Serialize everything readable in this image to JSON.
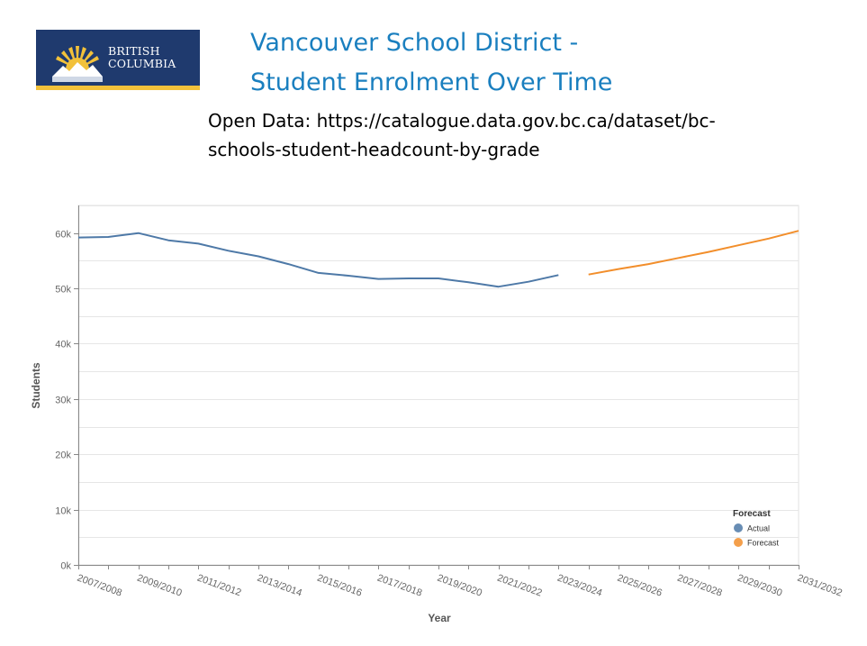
{
  "header": {
    "logo": {
      "line1": "BRITISH",
      "line2": "COLUMBIA",
      "name": "bc-government-logo"
    },
    "title_line1": "Vancouver School District -",
    "title_line2": "Student Enrolment Over Time",
    "source_line1": "Open Data: https://catalogue.data.gov.bc.ca/dataset/bc-",
    "source_line2": "schools-student-headcount-by-grade"
  },
  "chart_data": {
    "type": "line",
    "title": "",
    "xlabel": "Year",
    "ylabel": "Students",
    "x_ticks": [
      "2007/2008",
      "2009/2010",
      "2011/2012",
      "2013/2014",
      "2015/2016",
      "2017/2018",
      "2019/2020",
      "2021/2022",
      "2023/2024",
      "2025/2026",
      "2027/2028",
      "2029/2030",
      "2031/2032"
    ],
    "y_ticks": [
      "0k",
      "10k",
      "20k",
      "30k",
      "40k",
      "50k",
      "60k"
    ],
    "ylim": [
      0,
      65000
    ],
    "x_years": [
      "2007/2008",
      "2008/2009",
      "2009/2010",
      "2010/2011",
      "2011/2012",
      "2012/2013",
      "2013/2014",
      "2014/2015",
      "2015/2016",
      "2016/2017",
      "2017/2018",
      "2018/2019",
      "2019/2020",
      "2020/2021",
      "2021/2022",
      "2022/2023",
      "2023/2024",
      "2024/2025",
      "2025/2026",
      "2026/2027",
      "2027/2028",
      "2028/2029",
      "2029/2030",
      "2030/2031",
      "2031/2032"
    ],
    "grid": true,
    "legend": {
      "title": "Forecast",
      "position": "bottom-right"
    },
    "series": [
      {
        "name": "Actual",
        "color": "#4e79a7",
        "points": [
          [
            "2007/2008",
            59200
          ],
          [
            "2008/2009",
            59300
          ],
          [
            "2009/2010",
            60000
          ],
          [
            "2010/2011",
            58700
          ],
          [
            "2011/2012",
            58100
          ],
          [
            "2012/2013",
            56800
          ],
          [
            "2013/2014",
            55800
          ],
          [
            "2014/2015",
            54400
          ],
          [
            "2015/2016",
            52800
          ],
          [
            "2016/2017",
            52300
          ],
          [
            "2017/2018",
            51700
          ],
          [
            "2018/2019",
            51800
          ],
          [
            "2019/2020",
            51800
          ],
          [
            "2020/2021",
            51100
          ],
          [
            "2021/2022",
            50300
          ],
          [
            "2022/2023",
            51200
          ],
          [
            "2023/2024",
            52400
          ]
        ]
      },
      {
        "name": "Forecast",
        "color": "#f28e2b",
        "points": [
          [
            "2024/2025",
            52500
          ],
          [
            "2025/2026",
            53500
          ],
          [
            "2026/2027",
            54400
          ],
          [
            "2027/2028",
            55500
          ],
          [
            "2028/2029",
            56600
          ],
          [
            "2029/2030",
            57800
          ],
          [
            "2030/2031",
            59000
          ],
          [
            "2031/2032",
            60400
          ]
        ]
      }
    ]
  }
}
